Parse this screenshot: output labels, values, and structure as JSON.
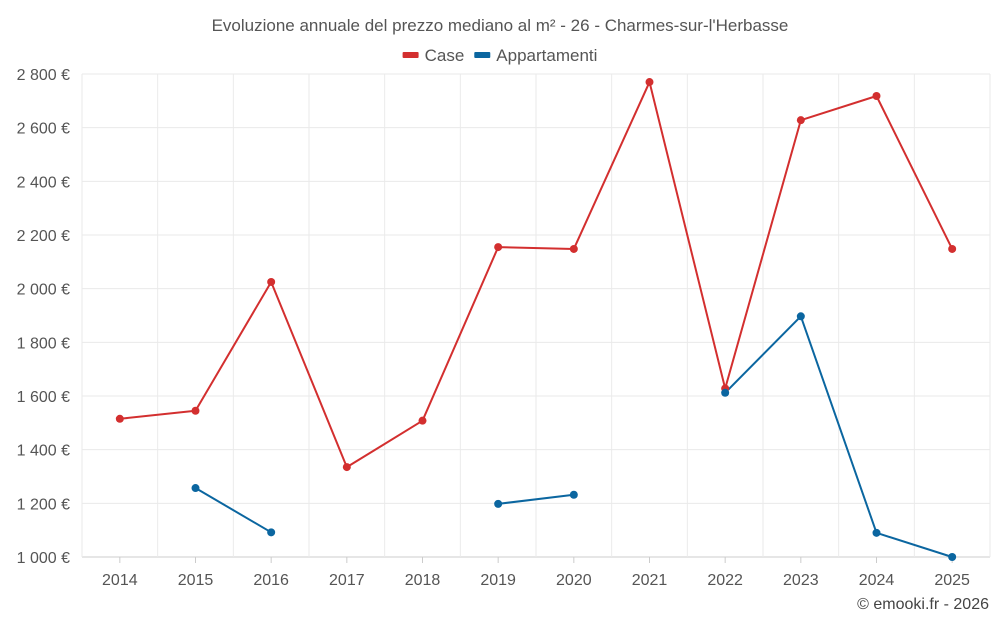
{
  "chart_data": {
    "type": "line",
    "title": "Evoluzione annuale del prezzo mediano al m² - 26 - Charmes-sur-l'Herbasse",
    "categories": [
      "2014",
      "2015",
      "2016",
      "2017",
      "2018",
      "2019",
      "2020",
      "2021",
      "2022",
      "2023",
      "2024",
      "2025"
    ],
    "y_ticks": [
      "1 000 €",
      "1 200 €",
      "1 400 €",
      "1 600 €",
      "1 800 €",
      "2 000 €",
      "2 200 €",
      "2 400 €",
      "2 600 €",
      "2 800 €"
    ],
    "y_tick_values": [
      1000,
      1200,
      1400,
      1600,
      1800,
      2000,
      2200,
      2400,
      2600,
      2800
    ],
    "ylim": [
      1000,
      2800
    ],
    "xlabel": "",
    "ylabel": "",
    "grid": true,
    "legend_position": "top-center",
    "series": [
      {
        "name": "Case",
        "color": "#d32f2f",
        "values": [
          1515,
          1545,
          2025,
          1335,
          1508,
          2155,
          2148,
          2770,
          1628,
          2628,
          2718,
          2148
        ]
      },
      {
        "name": "Appartamenti",
        "color": "#0b66a0",
        "values": [
          null,
          1257,
          1092,
          null,
          null,
          1198,
          1232,
          null,
          1612,
          1897,
          1090,
          1000
        ]
      }
    ]
  },
  "credit": "© emooki.fr - 2026"
}
